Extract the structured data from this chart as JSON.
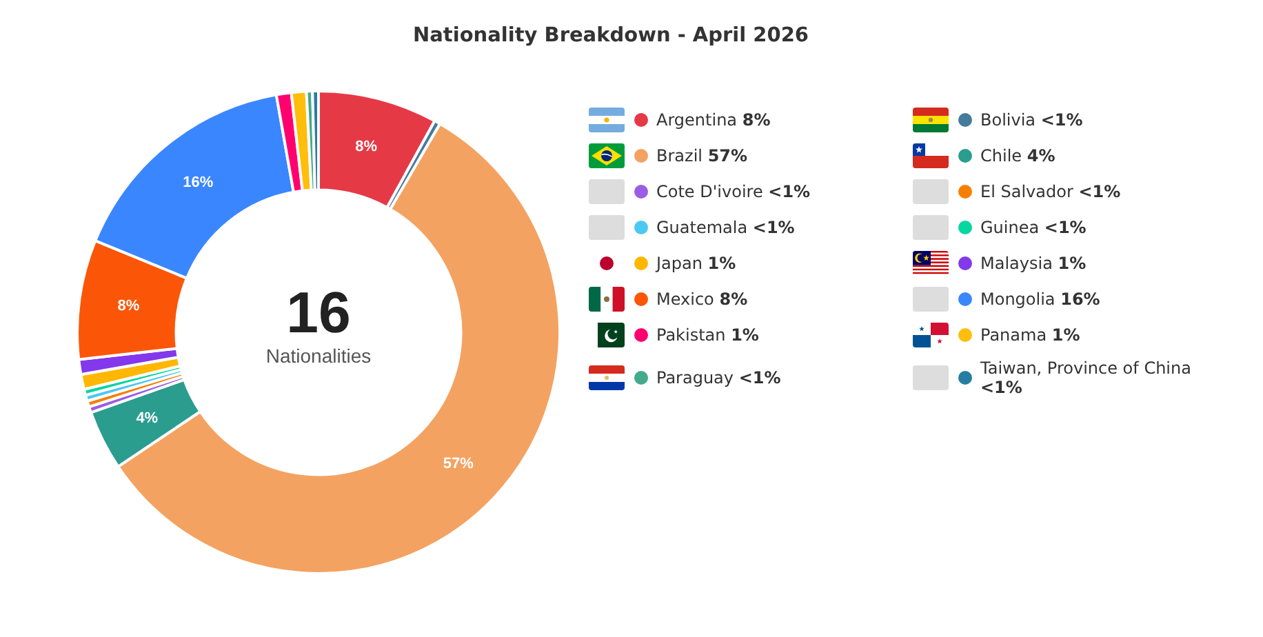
{
  "chart_data": {
    "type": "donut",
    "title": "Nationality Breakdown - April 2026",
    "categories": [
      "Argentina",
      "Bolivia",
      "Brazil",
      "Chile",
      "Cote D'ivoire",
      "El Salvador",
      "Guatemala",
      "Guinea",
      "Japan",
      "Malaysia",
      "Mexico",
      "Mongolia",
      "Pakistan",
      "Panama",
      "Paraguay",
      "Taiwan, Province of China"
    ],
    "values": [
      8,
      0.4,
      57.2,
      4,
      0.4,
      0.4,
      0.4,
      0.4,
      1,
      1,
      8,
      16,
      1,
      1,
      0.4,
      0.4
    ],
    "value_labels": [
      "8%",
      "<1%",
      "57%",
      "4%",
      "<1%",
      "<1%",
      "<1%",
      "<1%",
      "1%",
      "1%",
      "8%",
      "16%",
      "1%",
      "1%",
      "<1%",
      "<1%"
    ],
    "colors": [
      "#e63946",
      "#457b9d",
      "#f4a261",
      "#2a9d8f",
      "#9b5de5",
      "#f77f00",
      "#4cc9f0",
      "#06d6a0",
      "#ffb703",
      "#8338ec",
      "#fb5607",
      "#3a86ff",
      "#ff006e",
      "#ffbe0b",
      "#43aa8b",
      "#277da1"
    ],
    "annotations": [
      "16",
      "Nationalities"
    ],
    "legend": "right"
  }
}
